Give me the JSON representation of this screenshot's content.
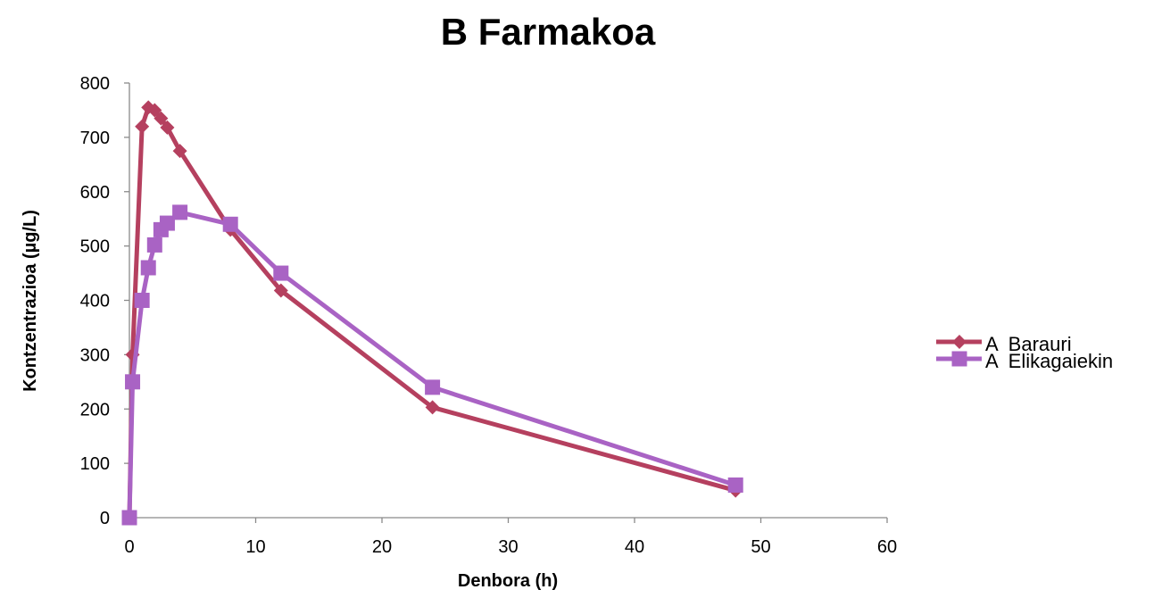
{
  "chart_data": {
    "type": "line",
    "title": "B Farmakoa",
    "xlabel": "Denbora (h)",
    "ylabel": "Kontzentrazioa (µg/L)",
    "xlim": [
      0,
      60
    ],
    "ylim": [
      0,
      800
    ],
    "x_ticks": [
      0,
      10,
      20,
      30,
      40,
      50,
      60
    ],
    "y_ticks": [
      0,
      100,
      200,
      300,
      400,
      500,
      600,
      700,
      800
    ],
    "grid": false,
    "legend_position": "right",
    "series": [
      {
        "name": "A  Barauri",
        "color": "#b5405f",
        "marker": "diamond",
        "x": [
          0,
          0.25,
          1,
          1.5,
          2,
          2.5,
          3,
          4,
          8,
          12,
          24,
          48
        ],
        "y": [
          0,
          300,
          720,
          755,
          750,
          735,
          718,
          675,
          530,
          418,
          203,
          50
        ]
      },
      {
        "name": "A  Elikagaiekin",
        "color": "#a963c4",
        "marker": "square",
        "x": [
          0,
          0.25,
          1,
          1.5,
          2,
          2.5,
          3,
          4,
          8,
          12,
          24,
          48
        ],
        "y": [
          0,
          250,
          400,
          460,
          502,
          530,
          542,
          562,
          540,
          450,
          240,
          60
        ]
      }
    ]
  }
}
